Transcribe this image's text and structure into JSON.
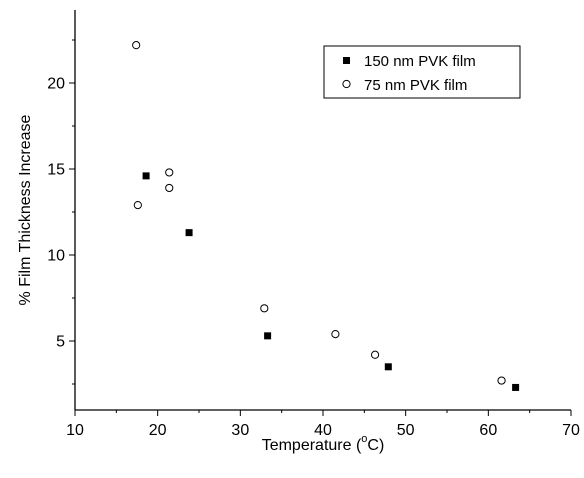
{
  "chart_data": {
    "type": "scatter",
    "xlabel_main": "Temperature (",
    "xlabel_sup": "o",
    "xlabel_end": "C)",
    "ylabel": "% Film Thickness Increase",
    "xlim": [
      10,
      70
    ],
    "ylim": [
      1,
      24
    ],
    "x_ticks": [
      10,
      20,
      30,
      40,
      50,
      60,
      70
    ],
    "y_ticks": [
      5,
      10,
      15,
      20
    ],
    "grid": false,
    "legend_position": "top-right",
    "series": [
      {
        "name": "150 nm PVK film",
        "marker": "filled-square",
        "color": "#000000",
        "points": [
          {
            "x": 18.6,
            "y": 14.6
          },
          {
            "x": 23.8,
            "y": 11.3
          },
          {
            "x": 33.3,
            "y": 5.3
          },
          {
            "x": 47.9,
            "y": 3.5
          },
          {
            "x": 63.3,
            "y": 2.3
          }
        ]
      },
      {
        "name": "75 nm PVK film",
        "marker": "open-circle",
        "color": "#000000",
        "points": [
          {
            "x": 17.4,
            "y": 22.2
          },
          {
            "x": 17.6,
            "y": 12.9
          },
          {
            "x": 21.4,
            "y": 14.8
          },
          {
            "x": 21.4,
            "y": 13.9
          },
          {
            "x": 32.9,
            "y": 6.9
          },
          {
            "x": 41.5,
            "y": 5.4
          },
          {
            "x": 46.3,
            "y": 4.2
          },
          {
            "x": 61.6,
            "y": 2.7
          }
        ]
      }
    ]
  }
}
